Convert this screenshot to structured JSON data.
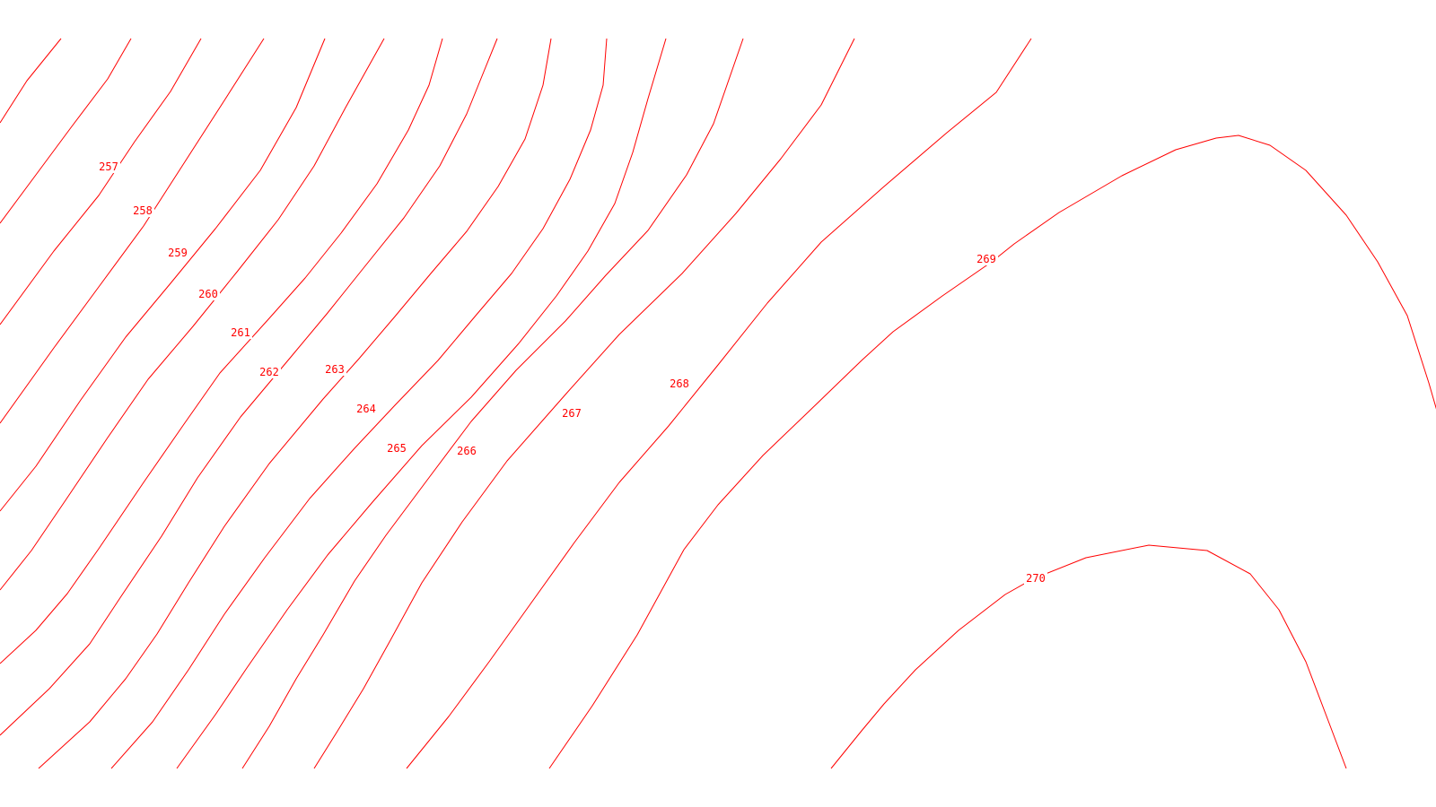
{
  "map": {
    "line_color": "#ff0000",
    "background": "#ffffff",
    "contours": [
      {
        "value": "257"
      },
      {
        "value": "258"
      },
      {
        "value": "259"
      },
      {
        "value": "260"
      },
      {
        "value": "261"
      },
      {
        "value": "262"
      },
      {
        "value": "263"
      },
      {
        "value": "264"
      },
      {
        "value": "265"
      },
      {
        "value": "266"
      },
      {
        "value": "267"
      },
      {
        "value": "268"
      },
      {
        "value": "269"
      },
      {
        "value": "270"
      }
    ]
  }
}
